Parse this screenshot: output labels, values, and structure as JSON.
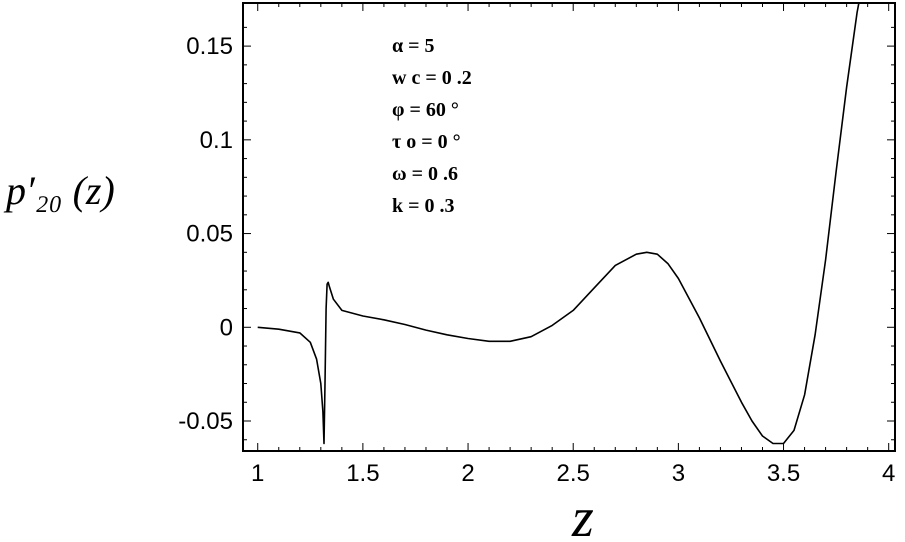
{
  "chart_data": {
    "type": "line",
    "title": "",
    "xlabel": "z",
    "ylabel": "p′₂₀ (z)",
    "xlim": [
      0.93,
      4.03
    ],
    "ylim": [
      -0.066,
      0.173
    ],
    "x_ticks": [
      1,
      1.5,
      2,
      2.5,
      3,
      3.5,
      4
    ],
    "x_tick_labels": [
      "1",
      "1.5",
      "2",
      "2.5",
      "3",
      "3.5",
      "4"
    ],
    "y_ticks": [
      -0.05,
      0,
      0.05,
      0.1,
      0.15
    ],
    "y_tick_labels": [
      "-0.05",
      "0",
      "0.05",
      "0.1",
      "0.15"
    ],
    "grid": false,
    "annotations": [
      "α  =  5",
      "w c  =  0 .2",
      "φ  =  60  °",
      "τ o  =  0 °",
      "ω  =  0 .6",
      "k  =  0 .3"
    ],
    "series": [
      {
        "x": [
          1.0,
          1.1,
          1.2,
          1.25,
          1.28,
          1.3,
          1.31,
          1.315,
          1.32,
          1.325,
          1.33,
          1.335,
          1.34,
          1.36,
          1.4,
          1.5,
          1.6,
          1.7,
          1.8,
          1.9,
          2.0,
          2.1,
          2.2,
          2.3,
          2.4,
          2.5,
          2.6,
          2.7,
          2.8,
          2.85,
          2.9,
          2.95,
          3.0,
          3.1,
          3.2,
          3.3,
          3.35,
          3.4,
          3.45,
          3.5,
          3.55,
          3.6,
          3.65,
          3.7,
          3.75,
          3.8,
          3.85,
          3.87
        ],
        "y": [
          0.0,
          -0.001,
          -0.003,
          -0.008,
          -0.017,
          -0.03,
          -0.045,
          -0.062,
          -0.03,
          0.01,
          0.023,
          0.024,
          0.022,
          0.015,
          0.009,
          0.006,
          0.004,
          0.0015,
          -0.0015,
          -0.004,
          -0.006,
          -0.0075,
          -0.0075,
          -0.005,
          0.001,
          0.009,
          0.021,
          0.033,
          0.039,
          0.04,
          0.039,
          0.034,
          0.026,
          0.005,
          -0.018,
          -0.04,
          -0.05,
          -0.058,
          -0.062,
          -0.062,
          -0.055,
          -0.036,
          -0.004,
          0.036,
          0.083,
          0.128,
          0.168,
          0.18
        ]
      }
    ]
  }
}
